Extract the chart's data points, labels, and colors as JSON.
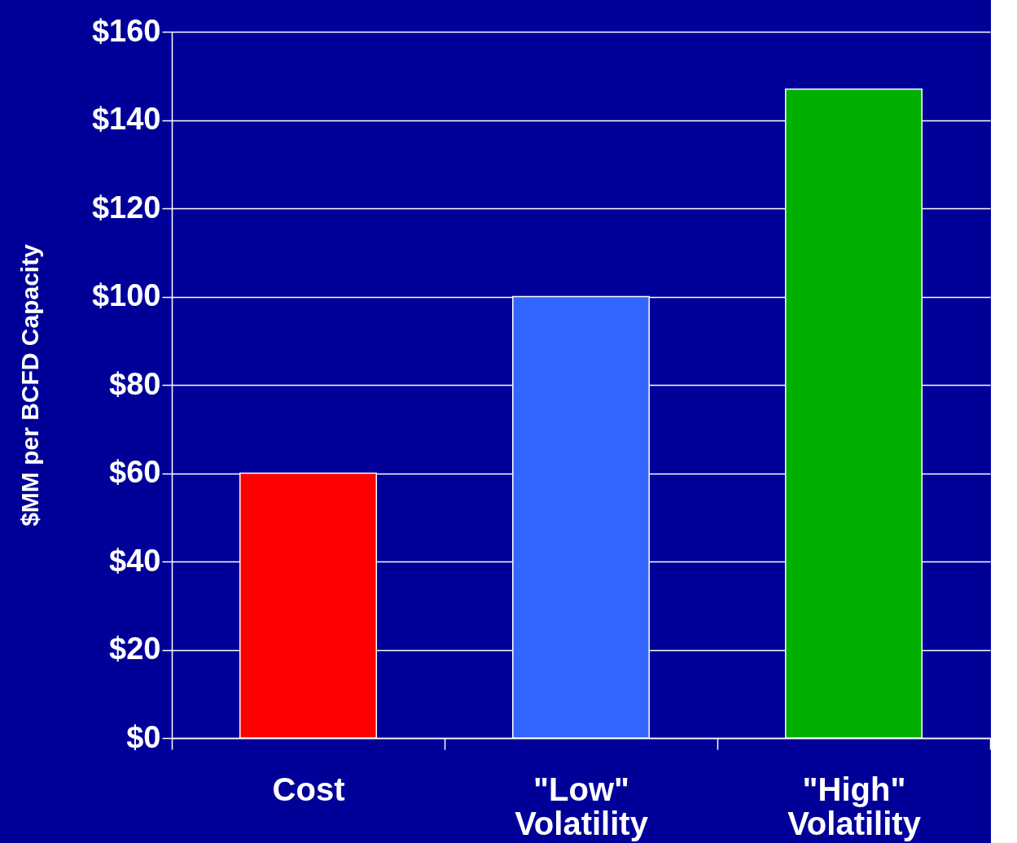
{
  "chart_data": {
    "type": "bar",
    "ylabel": "$MM per BCFD Capacity",
    "categories": [
      "Cost",
      "\"Low\" Volatility",
      "\"High\" Volatility"
    ],
    "values": [
      60,
      100,
      147
    ],
    "colors": [
      "#ff0000",
      "#3366ff",
      "#00b000"
    ],
    "ylim": [
      0,
      160
    ],
    "yticks": [
      {
        "value": 0,
        "label": "$0"
      },
      {
        "value": 20,
        "label": "$20"
      },
      {
        "value": 40,
        "label": "$40"
      },
      {
        "value": 60,
        "label": "$60"
      },
      {
        "value": 80,
        "label": "$80"
      },
      {
        "value": 100,
        "label": "$100"
      },
      {
        "value": 120,
        "label": "$120"
      },
      {
        "value": 140,
        "label": "$140"
      },
      {
        "value": 160,
        "label": "$160"
      }
    ],
    "grid": "y"
  }
}
